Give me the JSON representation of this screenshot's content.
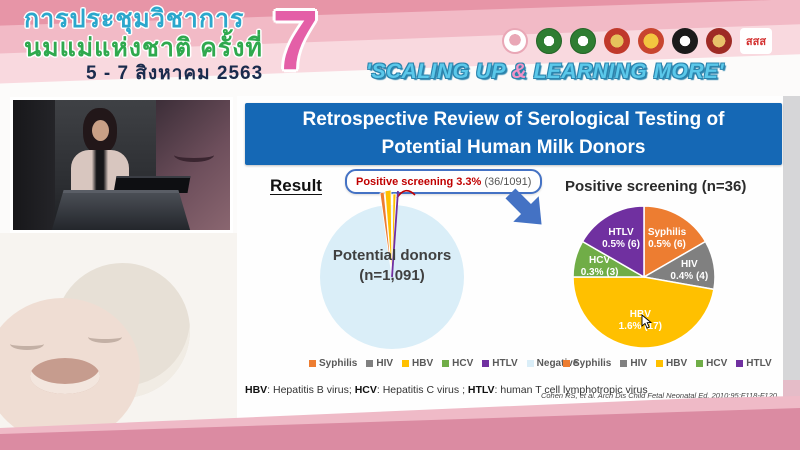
{
  "banner": {
    "conference_title_line1": "การประชุมวิชาการ",
    "conference_title_line2": "นมแม่แห่งชาติ ครั้งที่",
    "date": "5 - 7 สิงหาคม 2563",
    "edition_number": "7",
    "tagline_part1": "'SCALING UP ",
    "tagline_amp": "&",
    "tagline_part2": " LEARNING MORE'",
    "sss_logo_label": "สสส",
    "logo_names": [
      "mother-child-foundation-logo",
      "green-seal-logo-1",
      "green-seal-logo-2",
      "red-gold-emblem-logo",
      "red-yellow-emblem-logo",
      "black-round-emblem-logo",
      "dark-red-round-emblem-logo",
      "thai-health-sss-logo"
    ]
  },
  "slide": {
    "title": "Retrospective Review of Serological Testing of Potential Human Milk Donors",
    "result_label": "Result",
    "callout_highlight": "Positive screening 3.3%",
    "callout_detail": "(36/1091)",
    "footnote": {
      "t1": "HBV",
      "d1": ": Hepatitis B virus; ",
      "t2": "HCV",
      "d2": ": Hepatitis C virus ; ",
      "t3": "HTLV",
      "d3": ": human T cell lymphotropic virus"
    },
    "citation": "Cohen RS, et al. Arch Dis Child Fetal Neonatal Ed. 2010;95:F118-F120."
  },
  "colors": {
    "title_bar_blue": "#1568B5",
    "callout_border_blue": "#4472C4",
    "callout_text_red": "#C00000",
    "arrow_blue": "#4472C4",
    "banner_pink_dark": "#E795A7",
    "banner_pink_light": "#F2BAC6",
    "bottom_band_pink": "#DB8BA2",
    "tagline_blue": "#5BC8EA",
    "tagline_amp_pink": "#F193C7"
  },
  "chart_data": [
    {
      "type": "pie",
      "title": "Potential donors (n=1,091)",
      "center_label_line1": "Potential donors",
      "center_label_line2": "(n=1,091)",
      "total": 1091,
      "annotation": "Positive screening 3.3% (36/1091)",
      "slices": [
        {
          "label": "Syphilis",
          "value": 6,
          "color": "#ED7D31"
        },
        {
          "label": "HIV",
          "value": 4,
          "color": "#808080"
        },
        {
          "label": "HBV",
          "value": 17,
          "color": "#FFC000"
        },
        {
          "label": "HCV",
          "value": 3,
          "color": "#70AD47"
        },
        {
          "label": "HTLV",
          "value": 6,
          "color": "#7030A0"
        },
        {
          "label": "Negative",
          "value": 1055,
          "color": "#DAEEF8"
        }
      ],
      "legend": [
        "Syphilis",
        "HIV",
        "HBV",
        "HCV",
        "HTLV",
        "Negative"
      ],
      "legend_position": "bottom"
    },
    {
      "type": "pie",
      "title": "Positive screening (n=36)",
      "total": 36,
      "slices": [
        {
          "label": "Syphilis",
          "value": 6,
          "pct_label": "0.5% (6)",
          "color": "#ED7D31"
        },
        {
          "label": "HIV",
          "value": 4,
          "pct_label": "0.4% (4)",
          "color": "#808080"
        },
        {
          "label": "HBV",
          "value": 17,
          "pct_label": "1.6% (17)",
          "color": "#FFC000"
        },
        {
          "label": "HCV",
          "value": 3,
          "pct_label": "0.3% (3)",
          "color": "#70AD47"
        },
        {
          "label": "HTLV",
          "value": 6,
          "pct_label": "0.5% (6)",
          "color": "#7030A0"
        }
      ],
      "legend": [
        "Syphilis",
        "HIV",
        "HBV",
        "HCV",
        "HTLV"
      ],
      "legend_position": "bottom"
    }
  ]
}
